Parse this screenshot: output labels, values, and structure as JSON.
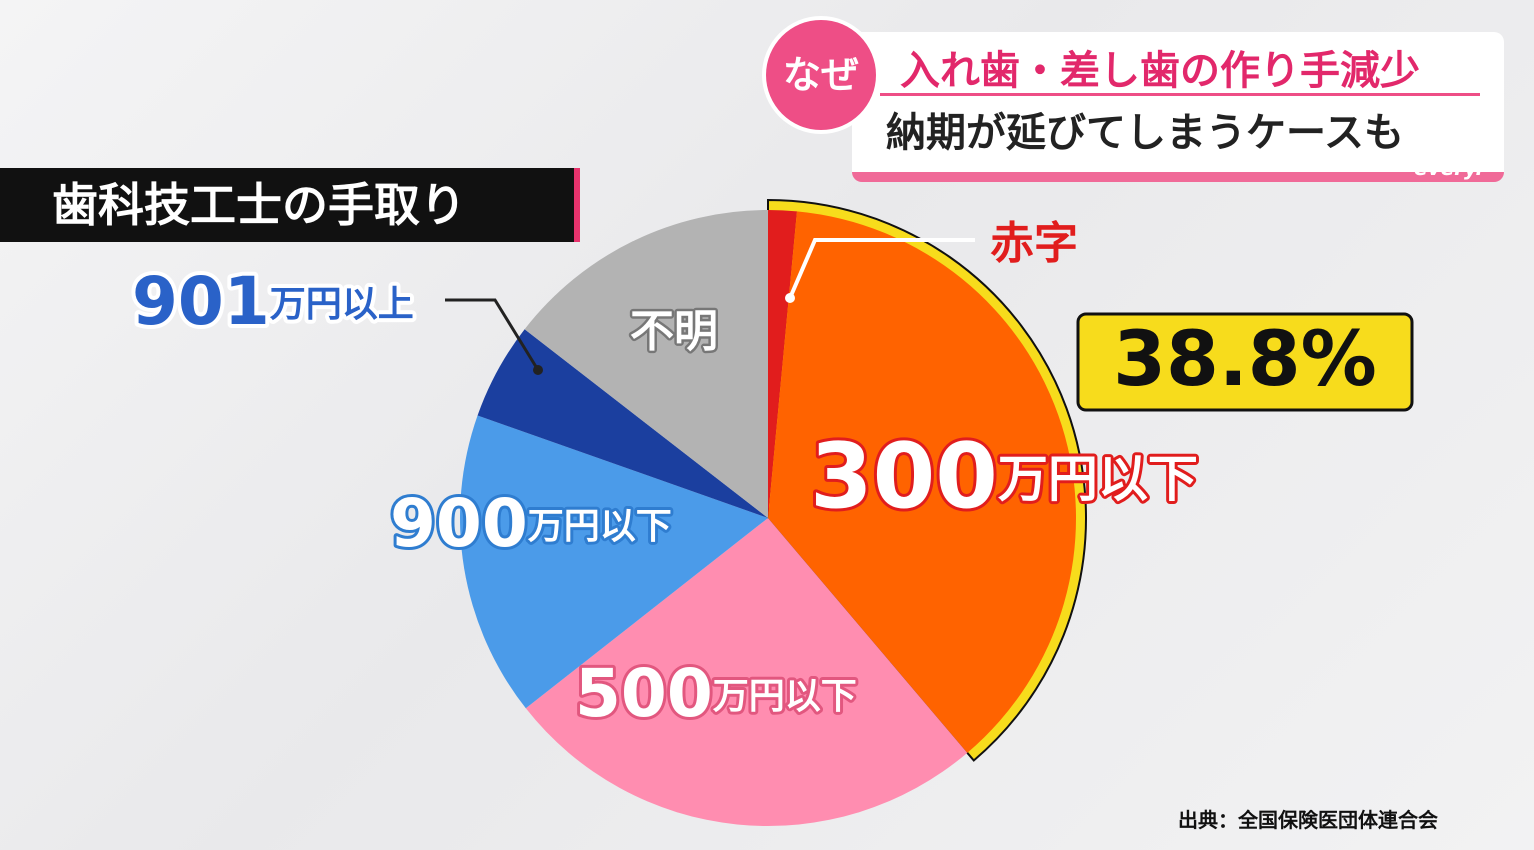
{
  "header": {
    "badge": "なぜ",
    "line1": "入れ歯・差し歯の作り手減少",
    "line2": "納期が延びてしまうケースも",
    "brand": "every."
  },
  "source": "出典：全国保険医団体連合会",
  "chart_data": {
    "type": "pie",
    "title": "歯科技工士の手取り",
    "categories": [
      "赤字",
      "300万円以下",
      "500万円以下",
      "900万円以下",
      "901万円以上",
      "不明"
    ],
    "values": [
      1.5,
      37.3,
      25.6,
      16,
      5.1,
      14.5
    ],
    "colors": [
      "#e11d1d",
      "#ff6300",
      "#ff8db0",
      "#4b9be9",
      "#1b3f9f",
      "#b3b3b3"
    ],
    "highlight": {
      "value": 38.8,
      "label": "38.8%",
      "color": "#f7dc1c"
    }
  }
}
